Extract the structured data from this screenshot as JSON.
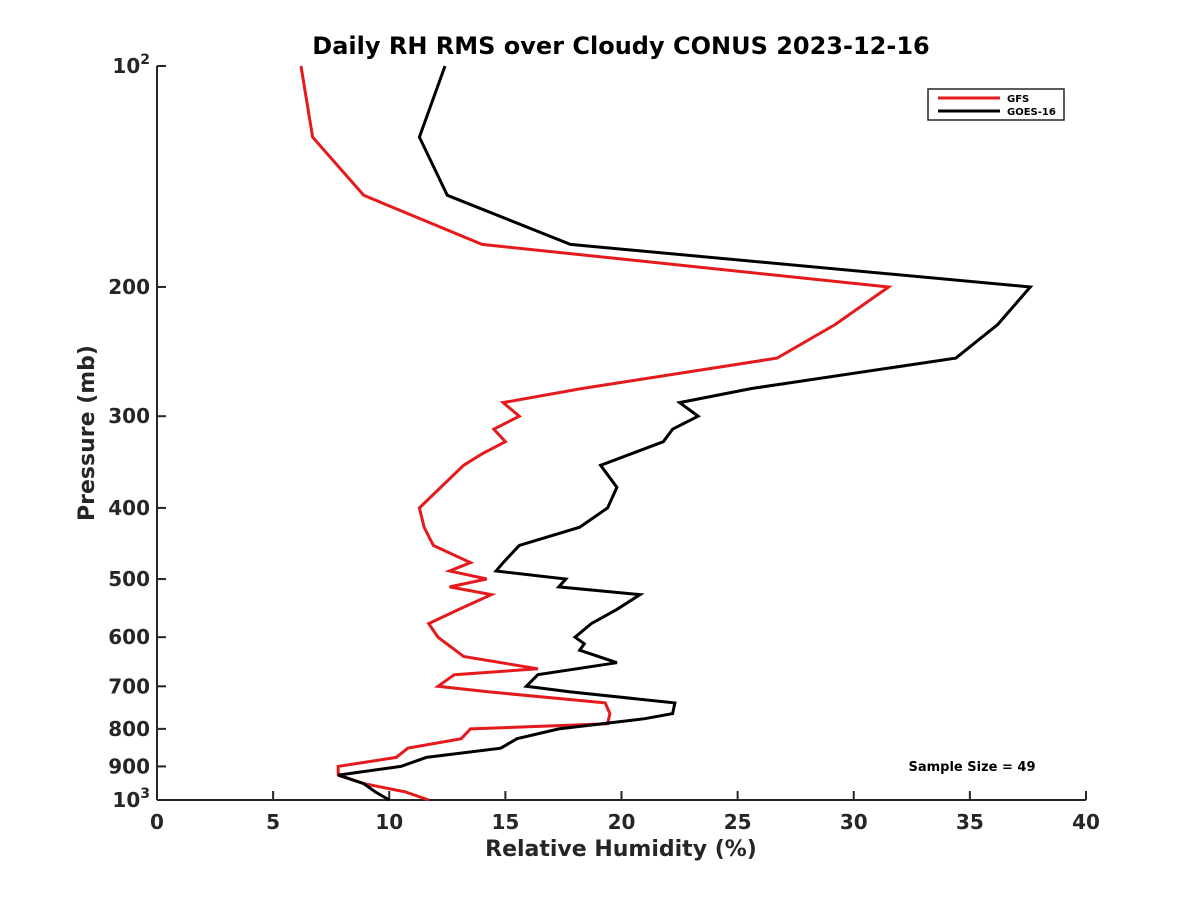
{
  "chart_data": {
    "type": "line",
    "title": "Daily RH RMS over Cloudy CONUS 2023-12-16",
    "xlabel": "Relative Humidity (%)",
    "ylabel": "Pressure (mb)",
    "xlim": [
      0,
      40
    ],
    "ylim": [
      100,
      1000
    ],
    "y_scale": "log",
    "y_reversed": true,
    "grid": false,
    "legend_position": "top-right",
    "x_ticks": [
      {
        "value": 0,
        "label": "0"
      },
      {
        "value": 5,
        "label": "5"
      },
      {
        "value": 10,
        "label": "10"
      },
      {
        "value": 15,
        "label": "15"
      },
      {
        "value": 20,
        "label": "20"
      },
      {
        "value": 25,
        "label": "25"
      },
      {
        "value": 30,
        "label": "30"
      },
      {
        "value": 35,
        "label": "35"
      },
      {
        "value": 40,
        "label": "40"
      }
    ],
    "y_ticks": [
      {
        "value": 100,
        "label": "10",
        "exp": "2"
      },
      {
        "value": 200,
        "label": "200",
        "exp": ""
      },
      {
        "value": 300,
        "label": "300",
        "exp": ""
      },
      {
        "value": 400,
        "label": "400",
        "exp": ""
      },
      {
        "value": 500,
        "label": "500",
        "exp": ""
      },
      {
        "value": 600,
        "label": "600",
        "exp": ""
      },
      {
        "value": 700,
        "label": "700",
        "exp": ""
      },
      {
        "value": 800,
        "label": "800",
        "exp": ""
      },
      {
        "value": 900,
        "label": "900",
        "exp": ""
      },
      {
        "value": 1000,
        "label": "10",
        "exp": "3"
      }
    ],
    "series": [
      {
        "name": "GFS",
        "color": "#e41a1c",
        "points": [
          [
            6.2,
            100
          ],
          [
            6.7,
            125
          ],
          [
            8.9,
            150
          ],
          [
            14.0,
            175
          ],
          [
            31.5,
            200
          ],
          [
            29.2,
            225
          ],
          [
            26.7,
            250
          ],
          [
            18.3,
            275
          ],
          [
            14.9,
            287.5
          ],
          [
            15.6,
            300
          ],
          [
            14.5,
            312.5
          ],
          [
            15.0,
            325
          ],
          [
            14.0,
            337.5
          ],
          [
            13.2,
            350
          ],
          [
            11.3,
            400
          ],
          [
            11.5,
            425
          ],
          [
            11.9,
            450
          ],
          [
            13.5,
            475
          ],
          [
            12.6,
            487.5
          ],
          [
            14.2,
            500
          ],
          [
            12.6,
            512.5
          ],
          [
            14.4,
            525
          ],
          [
            13.0,
            550
          ],
          [
            11.7,
            575
          ],
          [
            12.1,
            600
          ],
          [
            13.2,
            637.5
          ],
          [
            16.4,
            662.5
          ],
          [
            12.8,
            675
          ],
          [
            12.1,
            700
          ],
          [
            14.3,
            712.5
          ],
          [
            19.3,
            737.5
          ],
          [
            19.5,
            762.5
          ],
          [
            19.4,
            787.5
          ],
          [
            13.5,
            800
          ],
          [
            13.1,
            825
          ],
          [
            10.8,
            850
          ],
          [
            10.3,
            875
          ],
          [
            7.8,
            900
          ],
          [
            7.8,
            925
          ],
          [
            8.9,
            950
          ],
          [
            10.7,
            975
          ],
          [
            11.7,
            1000
          ]
        ]
      },
      {
        "name": "GOES-16",
        "color": "#000000",
        "points": [
          [
            12.4,
            100
          ],
          [
            11.3,
            125
          ],
          [
            12.5,
            150
          ],
          [
            17.8,
            175
          ],
          [
            37.6,
            200
          ],
          [
            36.2,
            225
          ],
          [
            34.4,
            250
          ],
          [
            25.6,
            275
          ],
          [
            22.5,
            287.5
          ],
          [
            23.3,
            300
          ],
          [
            22.2,
            312.5
          ],
          [
            21.8,
            325
          ],
          [
            19.1,
            350
          ],
          [
            19.8,
            375
          ],
          [
            19.4,
            400
          ],
          [
            18.2,
            425
          ],
          [
            15.6,
            450
          ],
          [
            14.9,
            475
          ],
          [
            14.6,
            487.5
          ],
          [
            17.6,
            500
          ],
          [
            17.3,
            512.5
          ],
          [
            20.8,
            525
          ],
          [
            19.8,
            550
          ],
          [
            18.7,
            575
          ],
          [
            18.0,
            600
          ],
          [
            18.4,
            612.5
          ],
          [
            18.2,
            625
          ],
          [
            19.8,
            650
          ],
          [
            16.4,
            675
          ],
          [
            15.9,
            700
          ],
          [
            17.8,
            712.5
          ],
          [
            22.3,
            737.5
          ],
          [
            22.2,
            762.5
          ],
          [
            21.0,
            775
          ],
          [
            17.3,
            800
          ],
          [
            15.5,
            825
          ],
          [
            14.8,
            850
          ],
          [
            11.6,
            875
          ],
          [
            10.5,
            900
          ],
          [
            7.8,
            925
          ],
          [
            8.9,
            950
          ],
          [
            9.4,
            975
          ],
          [
            10.0,
            1000
          ]
        ]
      }
    ],
    "annotation": "Sample Size = 49"
  }
}
